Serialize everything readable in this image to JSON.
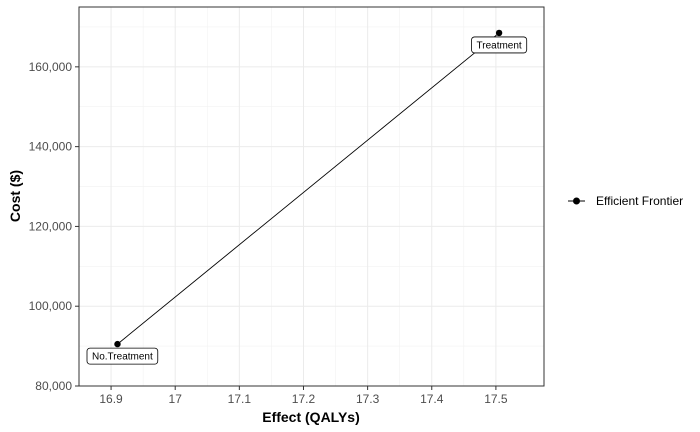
{
  "chart_data": {
    "type": "line",
    "title": "",
    "xlabel": "Effect (QALYs)",
    "ylabel": "Cost ($)",
    "xlim": [
      16.85,
      17.575
    ],
    "ylim": [
      80000,
      175000
    ],
    "x_ticks": [
      16.9,
      17.0,
      17.1,
      17.2,
      17.3,
      17.4,
      17.5
    ],
    "x_tick_labels": [
      "16.9",
      "17",
      "17.1",
      "17.2",
      "17.3",
      "17.4",
      "17.5"
    ],
    "y_ticks": [
      80000,
      100000,
      120000,
      140000,
      160000
    ],
    "y_tick_labels": [
      "80,000",
      "100,000",
      "120,000",
      "140,000",
      "160,000"
    ],
    "grid": true,
    "legend_position": "right",
    "series": [
      {
        "name": "Efficient Frontier",
        "color": "#000000",
        "points": [
          {
            "x": 16.91,
            "y": 90500,
            "label": "No.Treatment"
          },
          {
            "x": 17.505,
            "y": 168500,
            "label": "Treatment"
          }
        ]
      }
    ]
  }
}
